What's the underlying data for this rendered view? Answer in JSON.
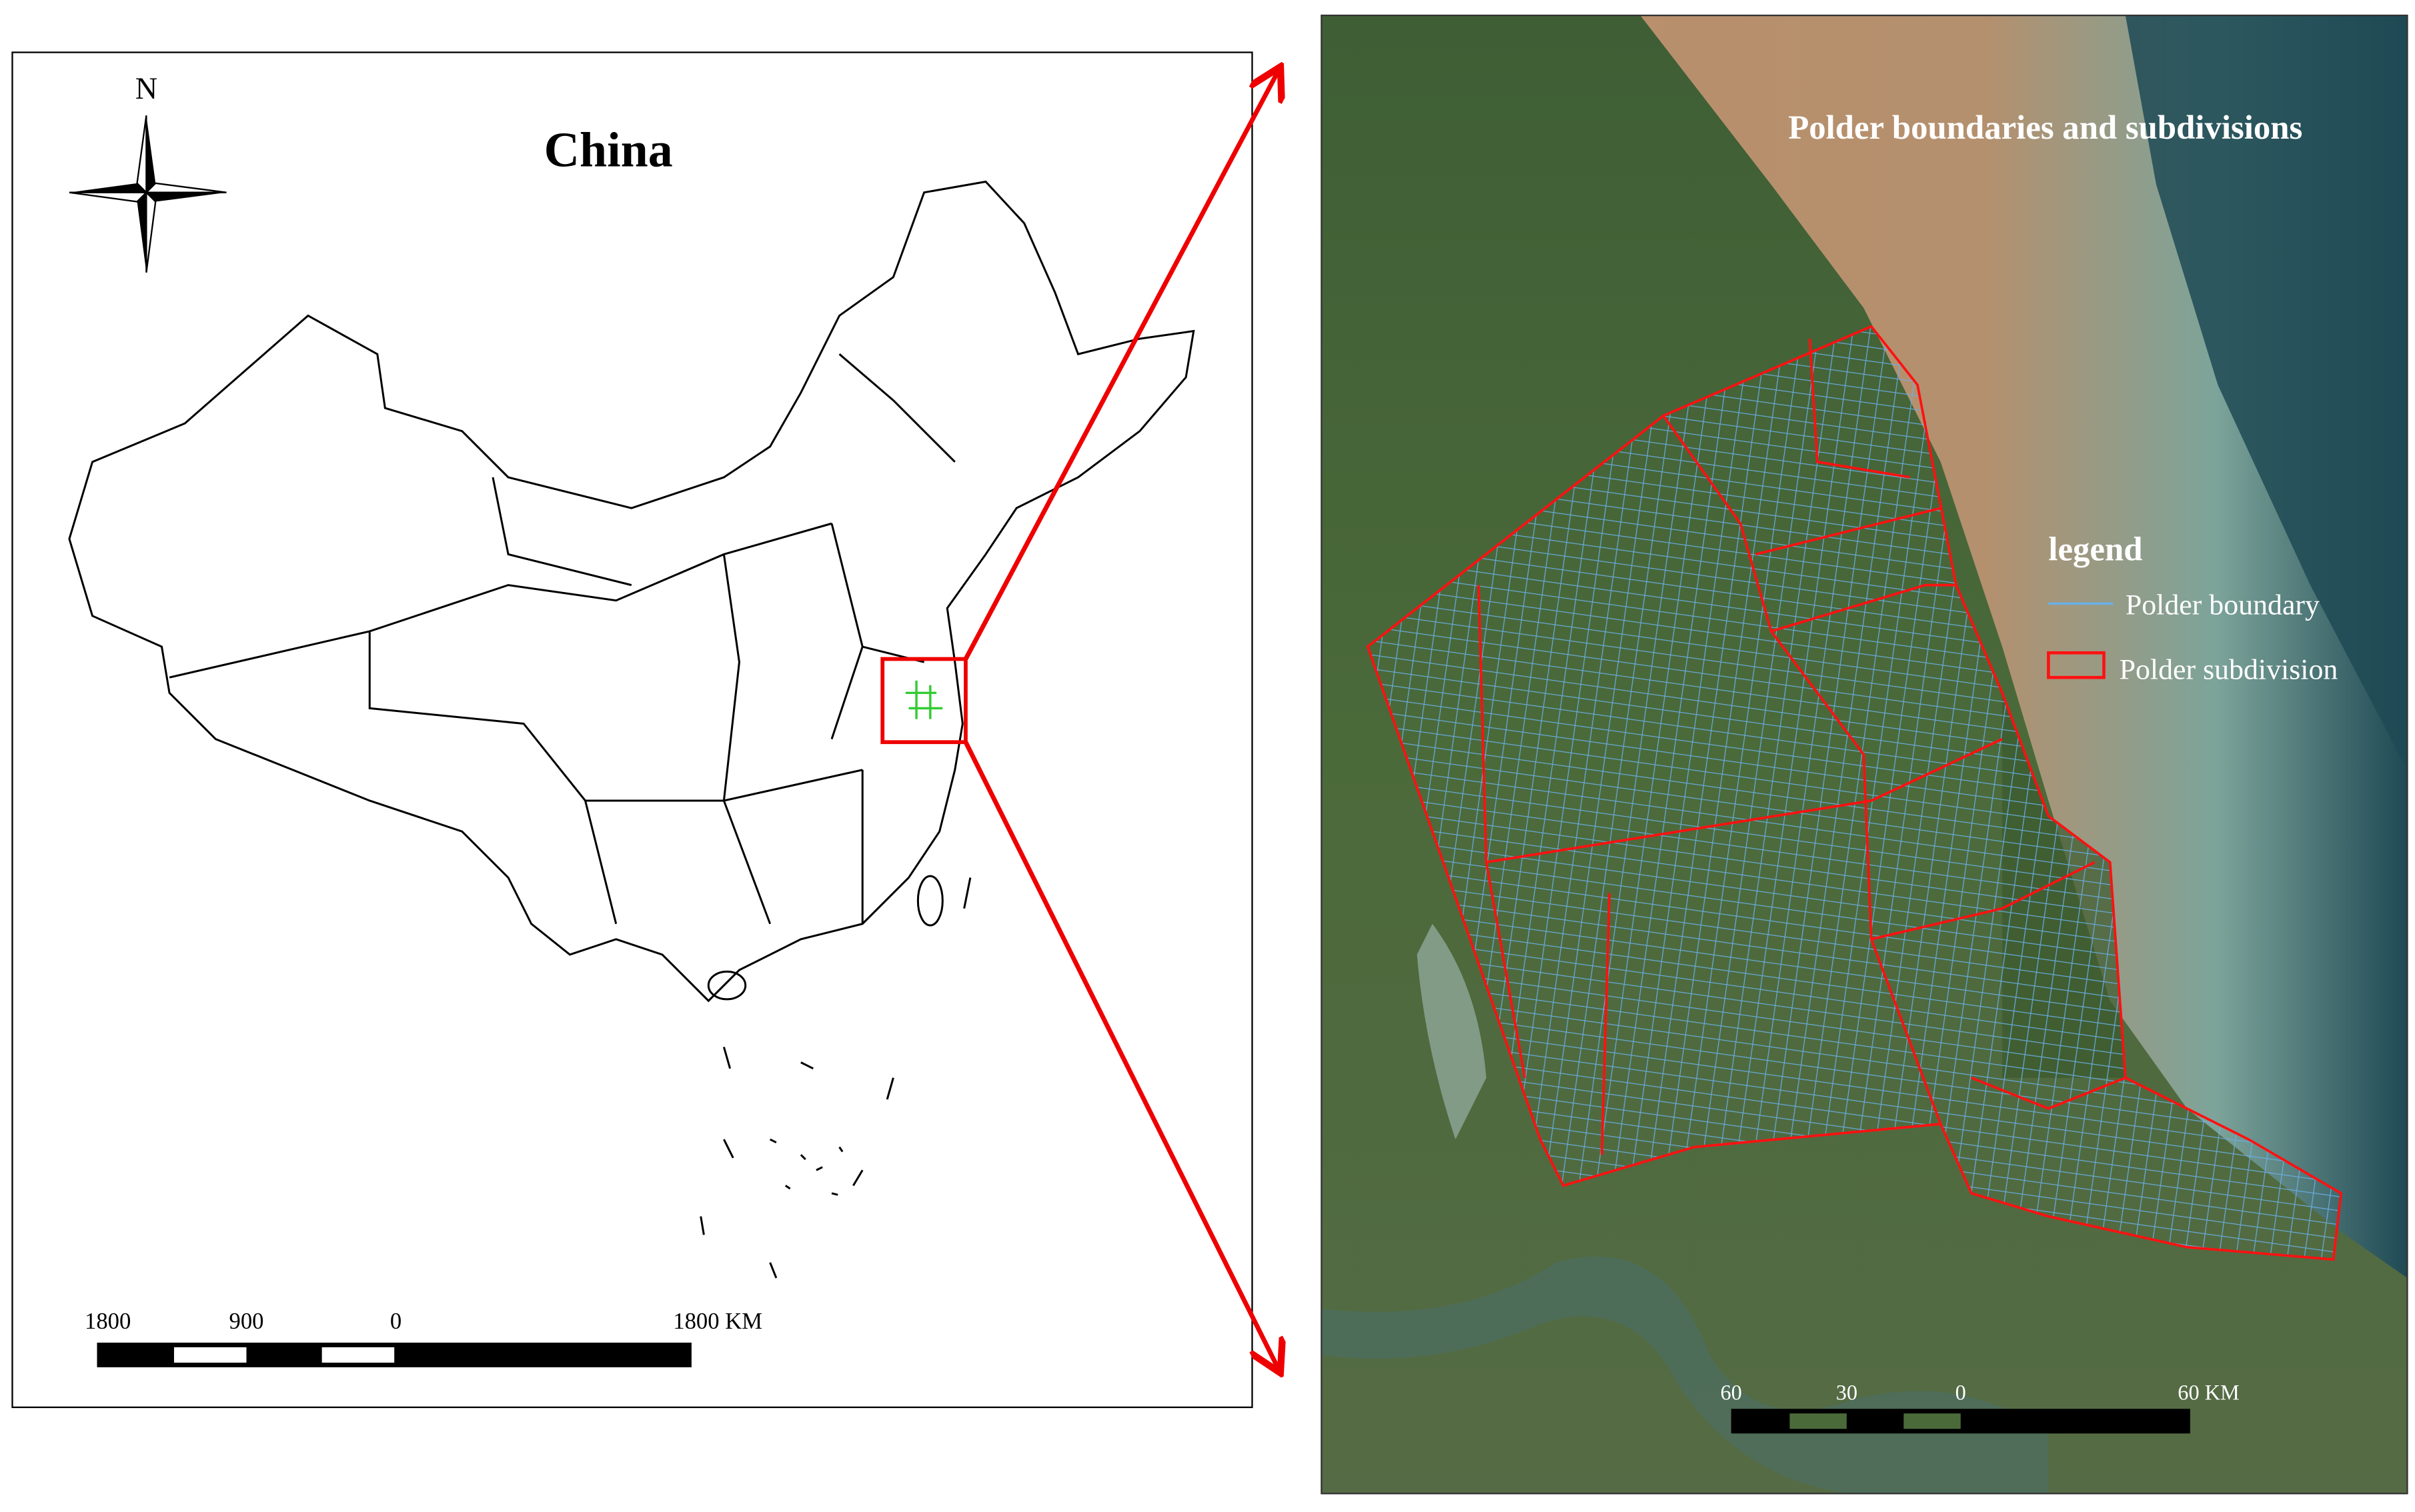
{
  "left": {
    "title": "China",
    "north": "N",
    "scale_labels": [
      "1800",
      "900",
      "0",
      "1800 KM"
    ]
  },
  "right": {
    "title": "Polder boundaries and subdivisions",
    "legend": {
      "title": "legend",
      "items": [
        "Polder boundary",
        "Polder subdivision"
      ]
    },
    "scale_labels": [
      "60",
      "30",
      "0",
      "60 KM"
    ]
  }
}
